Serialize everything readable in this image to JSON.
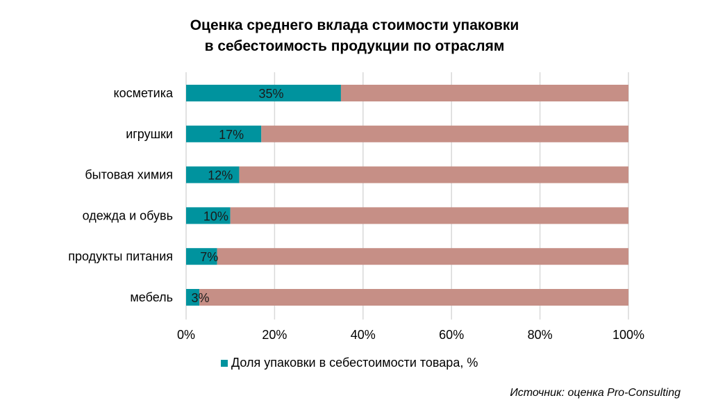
{
  "title_lines": [
    "Оценка среднего вклада стоимости упаковки",
    "в себестоимость продукции по отраслям"
  ],
  "source_text": "Источник: оценка Pro-Consulting",
  "colors": {
    "share": "#00939e",
    "remainder": "#c68f86",
    "grid": "#d9d9d9"
  },
  "chart_data": {
    "type": "bar",
    "orientation": "horizontal",
    "stacked": true,
    "categories": [
      "косметика",
      "игрушки",
      "бытовая химия",
      "одежда и обувь",
      "продукты питания",
      "мебель"
    ],
    "series": [
      {
        "name": "Доля упаковки в себестоимости товара, %",
        "values": [
          35,
          17,
          12,
          10,
          7,
          3
        ],
        "labels": [
          "35%",
          "17%",
          "12%",
          "10%",
          "7%",
          "3%"
        ]
      },
      {
        "values": [
          65,
          83,
          88,
          90,
          93,
          97
        ]
      }
    ],
    "xlim": [
      0,
      100
    ],
    "xticks": [
      0,
      20,
      40,
      60,
      80,
      100
    ],
    "xtick_labels": [
      "0%",
      "20%",
      "40%",
      "60%",
      "80%",
      "100%"
    ],
    "grid": "vertical",
    "legend_position": "bottom"
  }
}
